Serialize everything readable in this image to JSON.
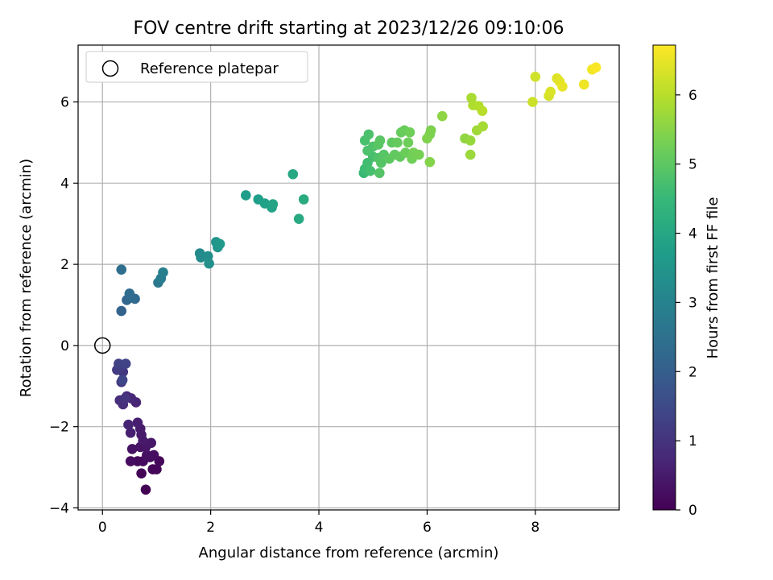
{
  "chart_data": {
    "type": "scatter",
    "title": "FOV centre drift starting at 2023/12/26 09:10:06",
    "xlabel": "Angular distance from reference (arcmin)",
    "ylabel": "Rotation from reference (arcmin)",
    "xlim": [
      -0.45,
      9.55
    ],
    "ylim": [
      -4.05,
      7.4
    ],
    "x_ticks": [
      0,
      2,
      4,
      6,
      8
    ],
    "y_ticks": [
      -4,
      -2,
      0,
      2,
      4,
      6
    ],
    "x_tick_labels": [
      "0",
      "2",
      "4",
      "6",
      "8"
    ],
    "y_tick_labels": [
      "−4",
      "−2",
      "0",
      "2",
      "4",
      "6"
    ],
    "grid": true,
    "legend": {
      "placement": "top-left",
      "entries": [
        "Reference platepar"
      ]
    },
    "reference_point": {
      "x": 0,
      "y": 0,
      "label": "Reference platepar"
    },
    "colorbar": {
      "label": "Hours from first FF file",
      "range": [
        0,
        6.72
      ],
      "ticks": [
        0,
        1,
        2,
        3,
        4,
        5,
        6
      ],
      "tick_labels": [
        "0",
        "1",
        "2",
        "3",
        "4",
        "5",
        "6"
      ],
      "colormap": "viridis",
      "colors": [
        "#440154",
        "#482878",
        "#3e4a89",
        "#31688e",
        "#26828e",
        "#1f9e89",
        "#35b779",
        "#6ece58",
        "#b5de2b",
        "#fde725"
      ]
    },
    "point_fields": [
      "x",
      "y",
      "hours"
    ],
    "points": [
      [
        0.8,
        -3.55,
        0.02
      ],
      [
        0.72,
        -3.15,
        0.05
      ],
      [
        0.93,
        -3.05,
        0.08
      ],
      [
        1.0,
        -3.05,
        0.1
      ],
      [
        1.05,
        -2.85,
        0.12
      ],
      [
        0.65,
        -2.85,
        0.15
      ],
      [
        0.75,
        -2.85,
        0.18
      ],
      [
        0.88,
        -2.75,
        0.2
      ],
      [
        0.52,
        -2.85,
        0.22
      ],
      [
        0.95,
        -2.7,
        0.25
      ],
      [
        0.82,
        -2.7,
        0.28
      ],
      [
        0.55,
        -2.55,
        0.32
      ],
      [
        0.7,
        -2.5,
        0.35
      ],
      [
        0.8,
        -2.5,
        0.38
      ],
      [
        0.9,
        -2.4,
        0.42
      ],
      [
        0.75,
        -2.35,
        0.45
      ],
      [
        0.72,
        -2.2,
        0.48
      ],
      [
        0.7,
        -2.05,
        0.52
      ],
      [
        0.65,
        -1.9,
        0.55
      ],
      [
        0.52,
        -2.15,
        0.6
      ],
      [
        0.48,
        -1.95,
        0.65
      ],
      [
        0.62,
        -1.4,
        0.7
      ],
      [
        0.53,
        -1.3,
        0.75
      ],
      [
        0.45,
        -1.25,
        0.8
      ],
      [
        0.32,
        -1.35,
        0.85
      ],
      [
        0.38,
        -1.45,
        0.9
      ],
      [
        0.42,
        -1.3,
        1.0
      ],
      [
        0.35,
        -0.9,
        1.05
      ],
      [
        0.38,
        -0.65,
        1.1
      ],
      [
        0.27,
        -0.6,
        1.15
      ],
      [
        0.33,
        -0.55,
        1.2
      ],
      [
        0.3,
        -0.45,
        1.3
      ],
      [
        0.43,
        -0.45,
        1.35
      ],
      [
        0.37,
        -0.85,
        1.4
      ],
      [
        0.35,
        0.85,
        2.1
      ],
      [
        0.45,
        1.12,
        2.2
      ],
      [
        0.52,
        1.18,
        2.25
      ],
      [
        0.6,
        1.15,
        2.3
      ],
      [
        0.5,
        1.28,
        2.35
      ],
      [
        0.35,
        1.87,
        2.4
      ],
      [
        1.03,
        1.55,
        2.7
      ],
      [
        1.08,
        1.65,
        2.8
      ],
      [
        1.12,
        1.8,
        2.9
      ],
      [
        1.8,
        2.27,
        3.2
      ],
      [
        1.82,
        2.17,
        3.25
      ],
      [
        1.95,
        2.2,
        3.3
      ],
      [
        1.97,
        2.02,
        3.35
      ],
      [
        2.1,
        2.55,
        3.5
      ],
      [
        2.13,
        2.42,
        3.55
      ],
      [
        2.17,
        2.5,
        3.6
      ],
      [
        2.65,
        3.7,
        3.7
      ],
      [
        2.88,
        3.6,
        3.75
      ],
      [
        3.0,
        3.5,
        3.8
      ],
      [
        3.13,
        3.4,
        3.85
      ],
      [
        3.15,
        3.48,
        3.9
      ],
      [
        3.52,
        4.22,
        4.0
      ],
      [
        3.63,
        3.12,
        4.05
      ],
      [
        3.72,
        3.6,
        4.1
      ],
      [
        4.83,
        4.25,
        4.55
      ],
      [
        4.85,
        4.35,
        4.6
      ],
      [
        4.9,
        4.5,
        4.65
      ],
      [
        4.95,
        4.3,
        4.7
      ],
      [
        5.0,
        4.65,
        4.72
      ],
      [
        4.85,
        5.05,
        4.75
      ],
      [
        4.92,
        5.2,
        4.78
      ],
      [
        4.9,
        4.8,
        4.8
      ],
      [
        5.0,
        4.9,
        4.82
      ],
      [
        5.1,
        4.62,
        4.85
      ],
      [
        5.12,
        4.25,
        4.88
      ],
      [
        5.15,
        4.5,
        4.9
      ],
      [
        5.2,
        4.7,
        4.92
      ],
      [
        5.13,
        5.05,
        4.95
      ],
      [
        5.1,
        4.95,
        4.97
      ],
      [
        5.3,
        4.6,
        5.0
      ],
      [
        5.35,
        5.0,
        5.02
      ],
      [
        5.4,
        4.7,
        5.05
      ],
      [
        5.5,
        4.65,
        5.08
      ],
      [
        5.45,
        5.0,
        5.1
      ],
      [
        5.52,
        5.25,
        5.12
      ],
      [
        5.58,
        5.3,
        5.15
      ],
      [
        5.6,
        4.75,
        5.18
      ],
      [
        5.65,
        5.0,
        5.2
      ],
      [
        5.68,
        5.25,
        5.22
      ],
      [
        5.72,
        4.6,
        5.25
      ],
      [
        5.75,
        4.75,
        5.28
      ],
      [
        5.85,
        4.7,
        5.3
      ],
      [
        6.05,
        5.2,
        5.35
      ],
      [
        6.07,
        5.3,
        5.38
      ],
      [
        6.0,
        5.1,
        5.4
      ],
      [
        6.05,
        4.52,
        5.45
      ],
      [
        6.28,
        5.65,
        5.55
      ],
      [
        6.7,
        5.1,
        5.6
      ],
      [
        6.8,
        5.05,
        5.65
      ],
      [
        6.8,
        4.7,
        5.7
      ],
      [
        6.92,
        5.3,
        5.75
      ],
      [
        7.03,
        5.4,
        5.8
      ],
      [
        6.82,
        6.1,
        5.85
      ],
      [
        6.85,
        5.92,
        5.9
      ],
      [
        6.95,
        5.9,
        5.95
      ],
      [
        7.02,
        5.78,
        6.0
      ],
      [
        7.95,
        6.0,
        6.2
      ],
      [
        8.0,
        6.62,
        6.25
      ],
      [
        8.25,
        6.15,
        6.3
      ],
      [
        8.28,
        6.25,
        6.35
      ],
      [
        8.4,
        6.58,
        6.4
      ],
      [
        8.45,
        6.5,
        6.45
      ],
      [
        8.5,
        6.38,
        6.5
      ],
      [
        8.9,
        6.43,
        6.55
      ],
      [
        9.05,
        6.8,
        6.6
      ],
      [
        9.12,
        6.85,
        6.68
      ]
    ]
  }
}
